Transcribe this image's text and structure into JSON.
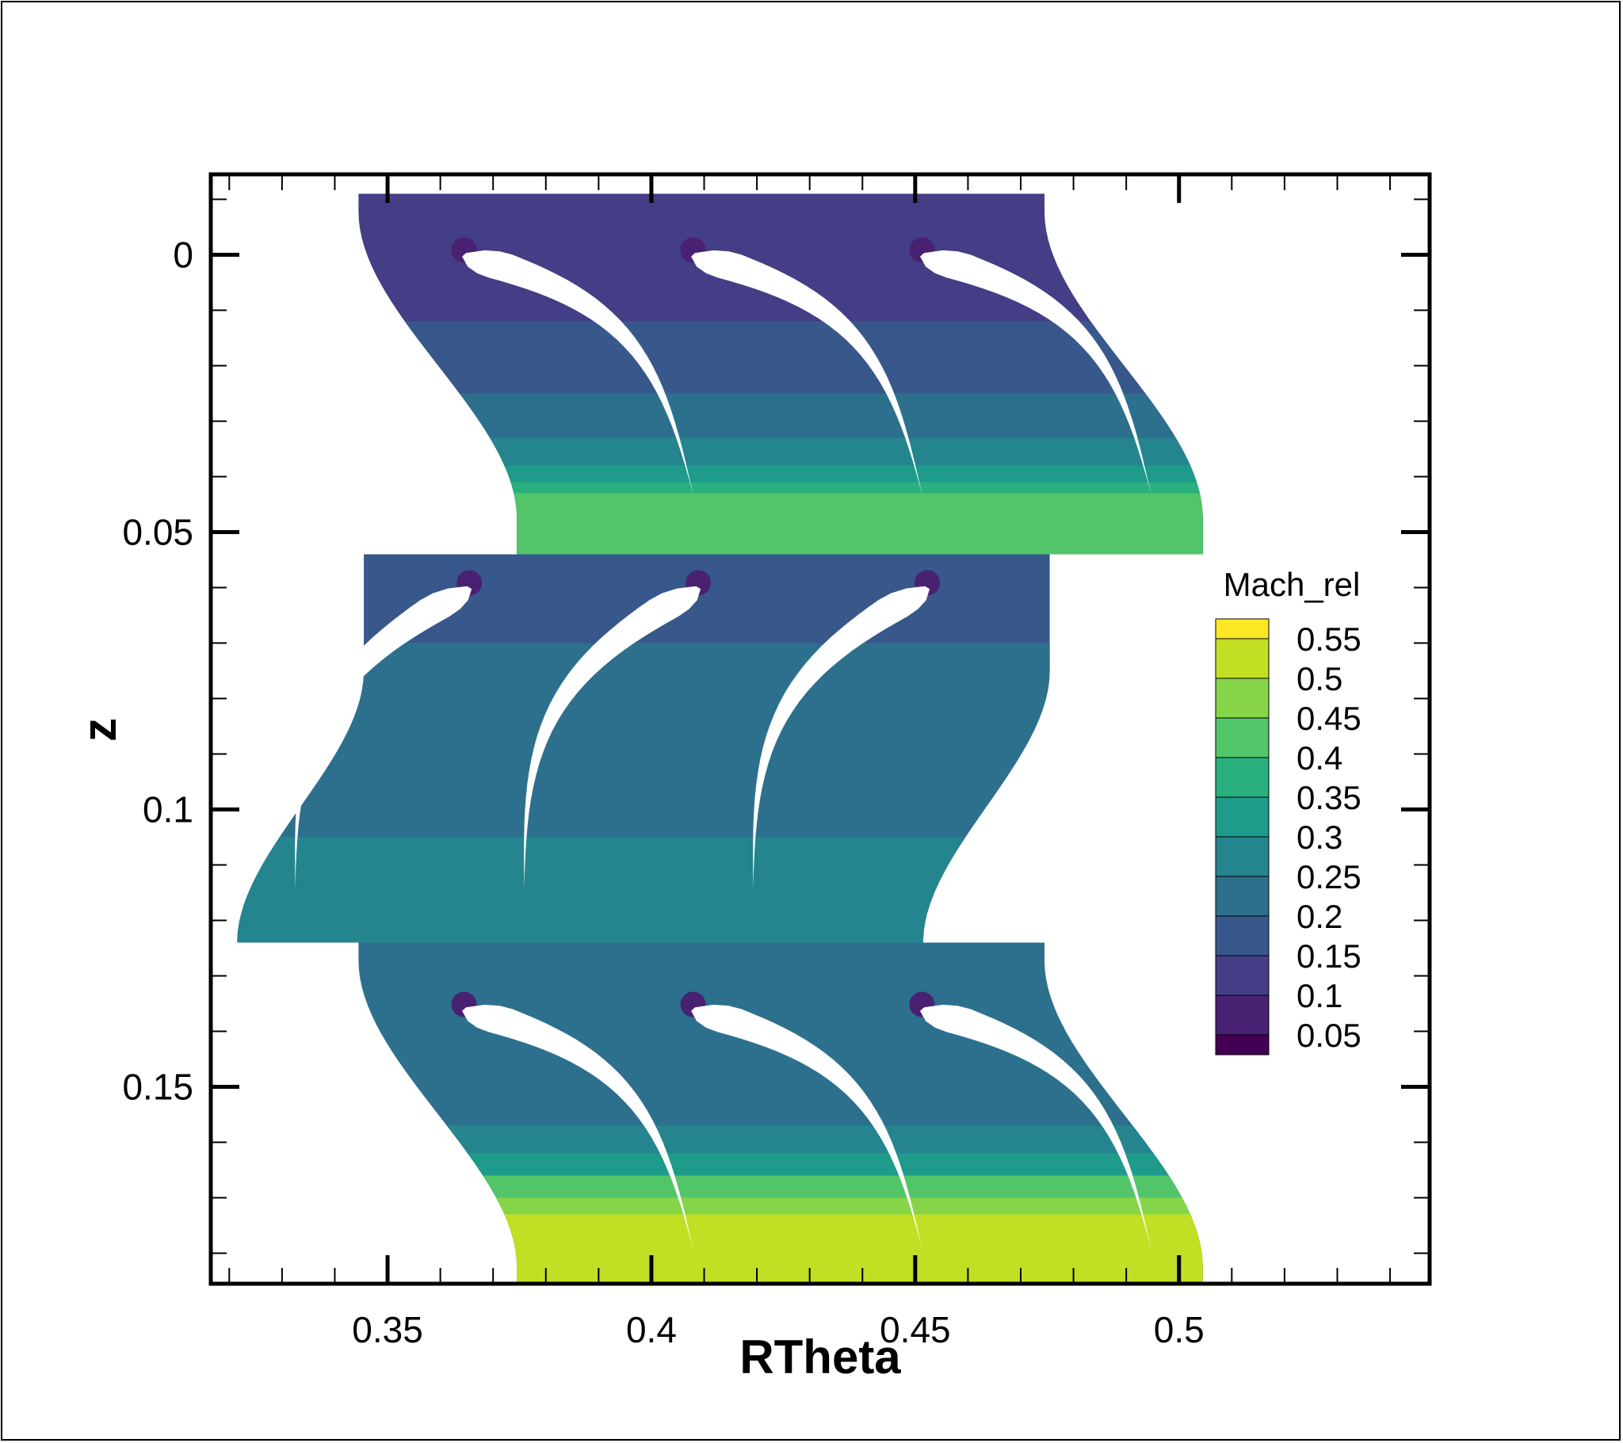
{
  "chart_data": {
    "type": "contour",
    "xlabel": "RTheta",
    "ylabel": "z",
    "xlim": [
      0.3165,
      0.5475
    ],
    "ylim": [
      -0.0145,
      0.1855
    ],
    "y_inverted": true,
    "x_ticks": [
      0.35,
      0.4,
      0.45,
      0.5
    ],
    "x_tick_labels": [
      "0.35",
      "0.4",
      "0.45",
      "0.5"
    ],
    "y_ticks": [
      0,
      0.05,
      0.1,
      0.15
    ],
    "y_tick_labels": [
      "0",
      "0.05",
      "0.1",
      "0.15"
    ],
    "x_minor_step": 0.01,
    "y_minor_step": 0.01,
    "legend": {
      "title": "Mach_rel",
      "placement": "right",
      "levels": [
        0.05,
        0.1,
        0.15,
        0.2,
        0.25,
        0.3,
        0.35,
        0.4,
        0.45,
        0.5,
        0.55
      ],
      "labels": [
        "0.55",
        "0.5",
        "0.45",
        "0.4",
        "0.35",
        "0.3",
        "0.25",
        "0.2",
        "0.15",
        "0.1",
        "0.05"
      ],
      "colors": [
        "#fde725",
        "#c2df23",
        "#86d549",
        "#52c569",
        "#2ab07f",
        "#1e9b8a",
        "#25858e",
        "#2d708e",
        "#38588c",
        "#433e85",
        "#482173",
        "#440154"
      ]
    },
    "blocks": [
      {
        "name": "top",
        "z_range": [
          -0.011,
          0.054
        ],
        "rtheta_range_top": [
          0.3445,
          0.4745
        ],
        "rtheta_range_bottom": [
          0.3745,
          0.5045
        ],
        "background_color": "#433e85",
        "bands": [
          {
            "z": 0.012,
            "color": "#38588c"
          },
          {
            "z": 0.025,
            "color": "#2d708e"
          },
          {
            "z": 0.033,
            "color": "#25858e"
          },
          {
            "z": 0.038,
            "color": "#1e9b8a"
          },
          {
            "z": 0.041,
            "color": "#2ab07f"
          },
          {
            "z": 0.043,
            "color": "#52c569"
          }
        ],
        "blade_leading_edges": [
          [
            0.3645,
            0.0
          ],
          [
            0.4079,
            0.0
          ],
          [
            0.4513,
            0.0
          ]
        ],
        "blade_trailing_edges": [
          [
            0.408,
            0.0435
          ],
          [
            0.4514,
            0.0435
          ],
          [
            0.4948,
            0.0435
          ]
        ]
      },
      {
        "name": "middle",
        "z_range": [
          0.054,
          0.124
        ],
        "rtheta_range_top": [
          0.3455,
          0.4755
        ],
        "rtheta_range_bottom": [
          0.3215,
          0.4515
        ],
        "background_color": "#38588c",
        "bands": [
          {
            "z": 0.07,
            "color": "#2d708e"
          },
          {
            "z": 0.105,
            "color": "#25858e"
          }
        ],
        "blade_leading_edges": [
          [
            0.3655,
            0.06
          ],
          [
            0.4089,
            0.06
          ],
          [
            0.4523,
            0.06
          ]
        ],
        "blade_trailing_edges": [
          [
            0.3325,
            0.1145
          ],
          [
            0.3759,
            0.1145
          ],
          [
            0.4193,
            0.1145
          ]
        ]
      },
      {
        "name": "bottom",
        "z_range": [
          0.124,
          0.189
        ],
        "rtheta_range_top": [
          0.3445,
          0.4745
        ],
        "rtheta_range_bottom": [
          0.3745,
          0.5045
        ],
        "background_color": "#2d708e",
        "bands": [
          {
            "z": 0.157,
            "color": "#25858e"
          },
          {
            "z": 0.162,
            "color": "#1e9b8a"
          },
          {
            "z": 0.166,
            "color": "#52c569"
          },
          {
            "z": 0.17,
            "color": "#86d549"
          },
          {
            "z": 0.173,
            "color": "#c2df23"
          }
        ],
        "blade_leading_edges": [
          [
            0.3645,
            0.136
          ],
          [
            0.4079,
            0.136
          ],
          [
            0.4513,
            0.136
          ]
        ],
        "blade_trailing_edges": [
          [
            0.408,
            0.1795
          ],
          [
            0.4514,
            0.1795
          ],
          [
            0.4948,
            0.1795
          ]
        ]
      }
    ]
  }
}
